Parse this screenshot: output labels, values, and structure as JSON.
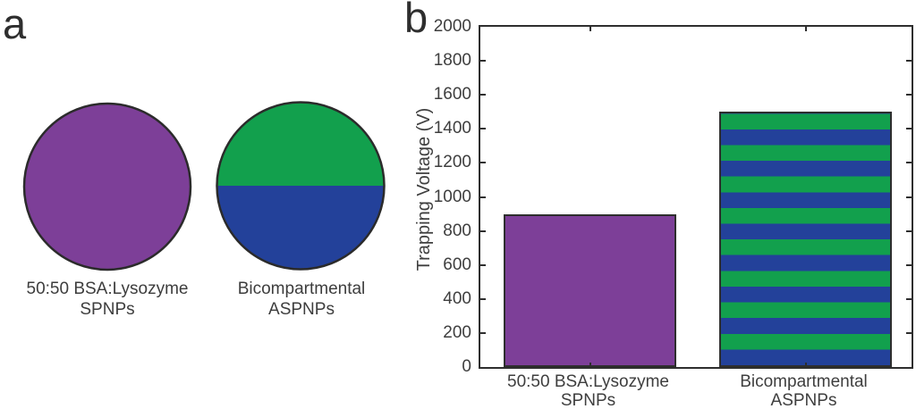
{
  "figure": {
    "panel_a": {
      "letter": "a",
      "circles": [
        {
          "style": "solid",
          "fill": "#7D3F98",
          "label_line1": "50:50 BSA:Lysozyme",
          "label_line2": "SPNPs"
        },
        {
          "style": "split-half",
          "top_fill": "#12A04D",
          "bottom_fill": "#23419A",
          "label_line1": "Bicompartmental",
          "label_line2": "ASPNPs"
        }
      ],
      "outline_color": "#2b2b2b"
    },
    "panel_b": {
      "letter": "b"
    }
  },
  "chart_data": {
    "type": "bar",
    "title": "",
    "xlabel": "",
    "ylabel": "Trapping Voltage (V)",
    "ylim": [
      0,
      2000
    ],
    "ytick_interval": 200,
    "ytick_labels": [
      "0",
      "200",
      "400",
      "600",
      "800",
      "1000",
      "1200",
      "1400",
      "1600",
      "1800",
      "2000"
    ],
    "grid": false,
    "legend": "none",
    "categories": [
      "50:50 BSA:Lysozyme SPNPs",
      "Bicompartmental ASPNPs"
    ],
    "category_label_lines": [
      [
        "50:50 BSA:Lysozyme",
        "SPNPs"
      ],
      [
        "Bicompartmental",
        "ASPNPs"
      ]
    ],
    "values": [
      900,
      1500
    ],
    "bar_width_fraction": 0.8,
    "bars": [
      {
        "pattern": "solid",
        "fill": "#7D3F98"
      },
      {
        "pattern": "horizontal-stripes",
        "stripe_colors": [
          "#12A04D",
          "#23419A"
        ],
        "stripe_count": 16,
        "top_stripe_color": "#12A04D",
        "bottom_stripe_color": "#23419A"
      }
    ],
    "axis_color": "#2e2e2e",
    "text_color": "#3e3e3e"
  },
  "colors": {
    "purple": "#7D3F98",
    "green": "#12A04D",
    "blue": "#23419A",
    "outline": "#2b2b2b",
    "background": "#ffffff"
  }
}
